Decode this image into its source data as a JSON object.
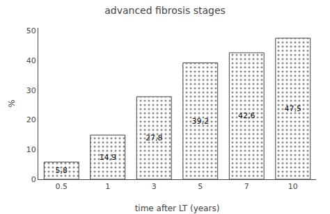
{
  "chart_data": {
    "type": "bar",
    "title": "advanced fibrosis stages",
    "xlabel": "time after LT (years)",
    "ylabel": "%",
    "categories": [
      "0.5",
      "1",
      "3",
      "5",
      "7",
      "10"
    ],
    "values": [
      5.8,
      14.9,
      27.8,
      39.2,
      42.6,
      47.5
    ],
    "value_labels": [
      "5,8",
      "14,9",
      "27,8",
      "39,2",
      "42,6",
      "47,5"
    ],
    "data_labels": true,
    "color": "#f2f2f2",
    "ylim": [
      0,
      51
    ],
    "yticks": [
      0,
      10,
      20,
      30,
      40,
      50
    ],
    "grid": false
  }
}
